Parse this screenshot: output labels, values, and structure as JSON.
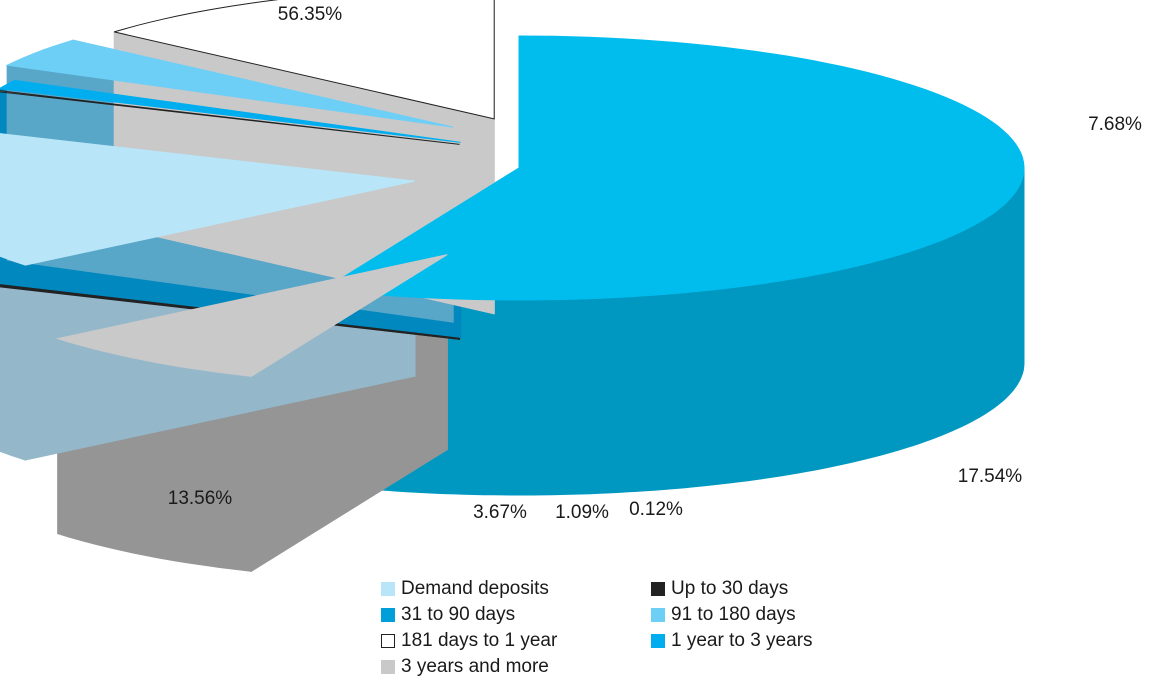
{
  "chart_data": {
    "type": "pie",
    "style": "3d-exploded",
    "title": "",
    "slices": [
      {
        "label": "3 years and more",
        "value": 56.35,
        "display": "56.35%",
        "color": "#00BDEE",
        "side": "#0098C0"
      },
      {
        "label": "Demand deposits",
        "value": 7.68,
        "display": "7.68%",
        "color": "#C9C9C9",
        "side": "#959595"
      },
      {
        "label": "31 to 90 days",
        "value": 17.54,
        "display": "17.54%",
        "color": "#B8E5F8",
        "side": "#94B8CA"
      },
      {
        "label": "Up to 30 days",
        "value": 0.12,
        "display": "0.12%",
        "color": "#ffffff",
        "side": "#222222"
      },
      {
        "label": "1 year to 3 years",
        "value": 1.09,
        "display": "1.09%",
        "color": "#00AEEF",
        "side": "#0088BF"
      },
      {
        "label": "91 to 180 days",
        "value": 3.67,
        "display": "3.67%",
        "color": "#6ECFF6",
        "side": "#58A6C8"
      },
      {
        "label": "181 days to 1 year",
        "value": 13.56,
        "display": "13.56%",
        "color": "#ffffff",
        "side": "#C9C9C9"
      }
    ],
    "legend": {
      "placement": "bottom",
      "columns": [
        [
          {
            "label": "Demand deposits",
            "color": "#B8E5F8"
          },
          {
            "label": "31 to 90 days",
            "color": "#009FDA"
          },
          {
            "label": "181 days to 1 year",
            "color": "#ffffff"
          },
          {
            "label": "3 years and more",
            "color": "#C9C9C9"
          }
        ],
        [
          {
            "label": "Up to 30 days",
            "color": "#222222"
          },
          {
            "label": "91 to 180 days",
            "color": "#6ECFF6"
          },
          {
            "label": "1 year to 3 years",
            "color": "#00AEEF"
          }
        ]
      ]
    }
  }
}
